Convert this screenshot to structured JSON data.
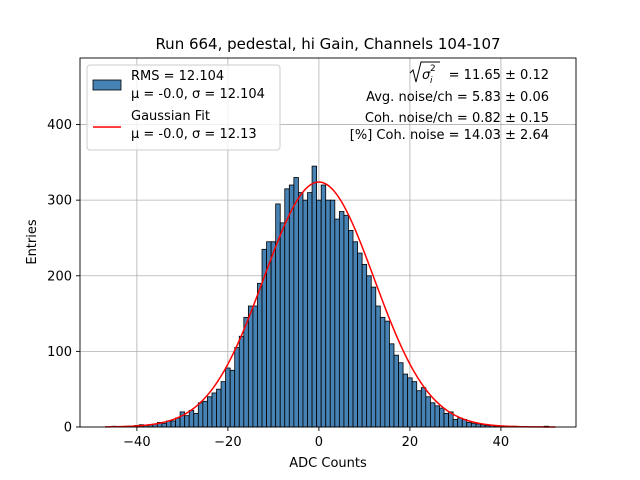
{
  "chart_data": {
    "type": "bar",
    "title": "Run 664, pedestal, hi Gain, Channels 104-107",
    "xlabel": "ADC Counts",
    "ylabel": "Entries",
    "xlim": [
      -52.5,
      56.5
    ],
    "ylim": [
      0,
      488
    ],
    "xticks": [
      -40,
      -20,
      0,
      20,
      40
    ],
    "xtick_labels": [
      "−40",
      "−20",
      "0",
      "20",
      "40"
    ],
    "yticks": [
      0,
      100,
      200,
      300,
      400
    ],
    "ytick_labels": [
      "0",
      "100",
      "200",
      "300",
      "400"
    ],
    "grid": true,
    "bin_width": 1,
    "bin_centers": [
      -47,
      -46,
      -45,
      -44,
      -43,
      -42,
      -41,
      -40,
      -39,
      -38,
      -37,
      -36,
      -35,
      -34,
      -33,
      -32,
      -31,
      -30,
      -29,
      -28,
      -27,
      -26,
      -25,
      -24,
      -23,
      -22,
      -21,
      -20,
      -19,
      -18,
      -17,
      -16,
      -15,
      -14,
      -13,
      -12,
      -11,
      -10,
      -9,
      -8,
      -7,
      -6,
      -5,
      -4,
      -3,
      -2,
      -1,
      0,
      1,
      2,
      3,
      4,
      5,
      6,
      7,
      8,
      9,
      10,
      11,
      12,
      13,
      14,
      15,
      16,
      17,
      18,
      19,
      20,
      21,
      22,
      23,
      24,
      25,
      26,
      27,
      28,
      29,
      30,
      31,
      32,
      33,
      34,
      35,
      36,
      37,
      38,
      39,
      40,
      41,
      42,
      43,
      44,
      45,
      46,
      47,
      48,
      49,
      50,
      51
    ],
    "counts": [
      0,
      0,
      1,
      0,
      0,
      1,
      1,
      2,
      3,
      2,
      3,
      4,
      6,
      5,
      8,
      8,
      12,
      20,
      15,
      22,
      18,
      32,
      34,
      40,
      45,
      50,
      60,
      78,
      75,
      105,
      120,
      145,
      160,
      160,
      190,
      235,
      245,
      245,
      295,
      270,
      315,
      320,
      330,
      310,
      300,
      310,
      345,
      300,
      320,
      300,
      300,
      275,
      285,
      280,
      260,
      245,
      230,
      215,
      200,
      185,
      160,
      145,
      140,
      110,
      95,
      85,
      70,
      65,
      60,
      48,
      52,
      40,
      32,
      28,
      25,
      18,
      20,
      10,
      12,
      10,
      6,
      5,
      4,
      3,
      2,
      2,
      1,
      1,
      1,
      0,
      1,
      0,
      0,
      0,
      0,
      0,
      0,
      1,
      0
    ],
    "fit_curve": {
      "mu": 0.0,
      "sigma": 12.13,
      "amplitude": 324,
      "x_range": [
        -47,
        52
      ]
    },
    "series": [
      {
        "name": "RMS = 12.104",
        "detail": "μ = -0.0, σ = 12.104",
        "color": "#4682b4",
        "kind": "histogram"
      },
      {
        "name": "Gaussian Fit",
        "detail": "μ = -0.0, σ = 12.13",
        "color": "#ff0000",
        "kind": "line"
      }
    ],
    "legend_position": "top-left",
    "annotations": {
      "sigma_sq_value": " = 11.65 ± 0.12",
      "avg_noise": "Avg. noise/ch = 5.83 ± 0.06",
      "coh_noise": "Coh. noise/ch = 0.82 ± 0.15",
      "coh_noise_pct": "[%] Coh. noise = 14.03 ± 2.64"
    }
  }
}
